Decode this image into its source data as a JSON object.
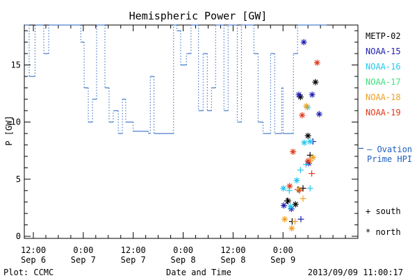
{
  "chart_data": {
    "type": "line",
    "title": "Hemispheric Power [GW]",
    "ylabel": "P [GW]",
    "xlabel": "Date and Time",
    "footer_left": "Plot: CCMC",
    "footer_right": "2013/09/09 11:00:17",
    "ylim": [
      0,
      18.5
    ],
    "xlim_hours": [
      -60,
      17
    ],
    "y_ticks": [
      0,
      5,
      10,
      15
    ],
    "x_ticks": [
      {
        "h": -60,
        "time": "12:00",
        "date": "Sep 6"
      },
      {
        "h": -48,
        "time": "0:00",
        "date": "Sep 7"
      },
      {
        "h": -36,
        "time": "12:00",
        "date": "Sep 7"
      },
      {
        "h": -24,
        "time": "0:00",
        "date": "Sep 8"
      },
      {
        "h": -12,
        "time": "12:00",
        "date": "Sep 8"
      },
      {
        "h": 0,
        "time": "0:00",
        "date": "Sep 9"
      }
    ],
    "ovation": {
      "name": "Ovation Prime HPI",
      "label_lines": [
        "— Ovation",
        "Prime HPI"
      ],
      "marker_value": 7.7,
      "color": "#1f5fbf",
      "steps": [
        [
          -62.0,
          18.5
        ],
        [
          -61.0,
          14
        ],
        [
          -59.6,
          18.5
        ],
        [
          -57.5,
          16
        ],
        [
          -56.3,
          18.5
        ],
        [
          -48.6,
          17
        ],
        [
          -47.8,
          13
        ],
        [
          -46.8,
          10
        ],
        [
          -45.8,
          12
        ],
        [
          -44.8,
          18.5
        ],
        [
          -42.8,
          13
        ],
        [
          -41.8,
          10
        ],
        [
          -40.8,
          11
        ],
        [
          -39.6,
          9
        ],
        [
          -38.6,
          12
        ],
        [
          -37.8,
          10
        ],
        [
          -36.0,
          9.2
        ],
        [
          -32.4,
          9
        ],
        [
          -31.9,
          14
        ],
        [
          -31.0,
          9
        ],
        [
          -26.3,
          18.5
        ],
        [
          -25.5,
          18
        ],
        [
          -24.6,
          15
        ],
        [
          -23.2,
          16
        ],
        [
          -22.1,
          18.5
        ],
        [
          -20.3,
          11
        ],
        [
          -19.2,
          16
        ],
        [
          -18.2,
          11
        ],
        [
          -17.2,
          13
        ],
        [
          -16.2,
          18.5
        ],
        [
          -14.2,
          11
        ],
        [
          -13.2,
          18.5
        ],
        [
          -11.0,
          10
        ],
        [
          -10.0,
          18.5
        ],
        [
          -7.0,
          16
        ],
        [
          -6.0,
          10
        ],
        [
          -4.8,
          9
        ],
        [
          -3.0,
          16
        ],
        [
          -2.0,
          9
        ],
        [
          -0.3,
          13
        ],
        [
          0.0,
          9
        ],
        [
          2.5,
          16
        ],
        [
          3.5,
          18.5
        ],
        [
          10.5,
          18.5
        ]
      ]
    },
    "series": [
      {
        "name": "METP-02",
        "color": "#000000"
      },
      {
        "name": "NOAA-15",
        "color": "#1c1cb0"
      },
      {
        "name": "NOAA-16",
        "color": "#22c8ee"
      },
      {
        "name": "NOAA-17",
        "color": "#3ee07e"
      },
      {
        "name": "NOAA-18",
        "color": "#f0a020"
      },
      {
        "name": "NOAA-19",
        "color": "#e03818"
      }
    ],
    "marker_legend": [
      {
        "symbol": "+",
        "label": "south"
      },
      {
        "symbol": "*",
        "label": "north"
      }
    ],
    "points": [
      {
        "s": 0,
        "m": "+",
        "h": 1.0,
        "v": 3.1
      },
      {
        "s": 0,
        "m": "+",
        "h": 2.2,
        "v": 1.3
      },
      {
        "s": 0,
        "m": "*",
        "h": 3.0,
        "v": 2.8
      },
      {
        "s": 0,
        "m": "*",
        "h": 1.2,
        "v": 3.1
      },
      {
        "s": 0,
        "m": "*",
        "h": 4.2,
        "v": 12.2
      },
      {
        "s": 0,
        "m": "*",
        "h": 6.0,
        "v": 8.8
      },
      {
        "s": 0,
        "m": "+",
        "h": 6.5,
        "v": 7.1
      },
      {
        "s": 0,
        "m": "*",
        "h": 7.8,
        "v": 13.5
      },
      {
        "s": 0,
        "m": "+",
        "h": 4.8,
        "v": 4.2
      },
      {
        "s": 1,
        "m": "*",
        "h": 0.2,
        "v": 2.7
      },
      {
        "s": 1,
        "m": "*",
        "h": 2.0,
        "v": 2.4
      },
      {
        "s": 1,
        "m": "+",
        "h": 4.3,
        "v": 1.5
      },
      {
        "s": 1,
        "m": "*",
        "h": 3.8,
        "v": 12.4
      },
      {
        "s": 1,
        "m": "*",
        "h": 5.0,
        "v": 17.0
      },
      {
        "s": 1,
        "m": "*",
        "h": 7.0,
        "v": 12.4
      },
      {
        "s": 1,
        "m": "*",
        "h": 6.2,
        "v": 6.4
      },
      {
        "s": 1,
        "m": "*",
        "h": 8.7,
        "v": 10.7
      },
      {
        "s": 1,
        "m": "+",
        "h": 7.2,
        "v": 8.3
      },
      {
        "s": 1,
        "m": "+",
        "h": 3.6,
        "v": 4.1
      },
      {
        "s": 2,
        "m": "*",
        "h": 0.1,
        "v": 4.2
      },
      {
        "s": 2,
        "m": "+",
        "h": 1.5,
        "v": 4.0
      },
      {
        "s": 2,
        "m": "*",
        "h": 1.8,
        "v": 2.6
      },
      {
        "s": 2,
        "m": "*",
        "h": 3.3,
        "v": 4.9
      },
      {
        "s": 2,
        "m": "+",
        "h": 4.2,
        "v": 5.8
      },
      {
        "s": 2,
        "m": "*",
        "h": 5.1,
        "v": 8.2
      },
      {
        "s": 2,
        "m": "*",
        "h": 6.5,
        "v": 8.3
      },
      {
        "s": 2,
        "m": "+",
        "h": 6.5,
        "v": 4.2
      },
      {
        "s": 2,
        "m": "*",
        "h": 5.9,
        "v": 11.3
      },
      {
        "s": 2,
        "m": "+",
        "h": 5.5,
        "v": 6.3
      },
      {
        "s": 4,
        "m": "*",
        "h": 0.4,
        "v": 1.5
      },
      {
        "s": 4,
        "m": "*",
        "h": 2.1,
        "v": 0.7
      },
      {
        "s": 4,
        "m": "+",
        "h": 2.9,
        "v": 1.3
      },
      {
        "s": 4,
        "m": "*",
        "h": 3.8,
        "v": 4.1
      },
      {
        "s": 4,
        "m": "+",
        "h": 4.8,
        "v": 3.3
      },
      {
        "s": 4,
        "m": "*",
        "h": 5.6,
        "v": 11.4
      },
      {
        "s": 4,
        "m": "*",
        "h": 7.2,
        "v": 6.9
      },
      {
        "s": 4,
        "m": "+",
        "h": 6.6,
        "v": 6.6
      },
      {
        "s": 5,
        "m": "*",
        "h": 1.6,
        "v": 4.4
      },
      {
        "s": 5,
        "m": "*",
        "h": 2.4,
        "v": 7.4
      },
      {
        "s": 5,
        "m": "*",
        "h": 4.6,
        "v": 10.6
      },
      {
        "s": 5,
        "m": "*",
        "h": 6.0,
        "v": 6.6
      },
      {
        "s": 5,
        "m": "+",
        "h": 6.9,
        "v": 5.5
      },
      {
        "s": 5,
        "m": "*",
        "h": 8.2,
        "v": 15.2
      },
      {
        "s": 5,
        "m": "+",
        "h": 4.0,
        "v": 4.0
      }
    ]
  }
}
